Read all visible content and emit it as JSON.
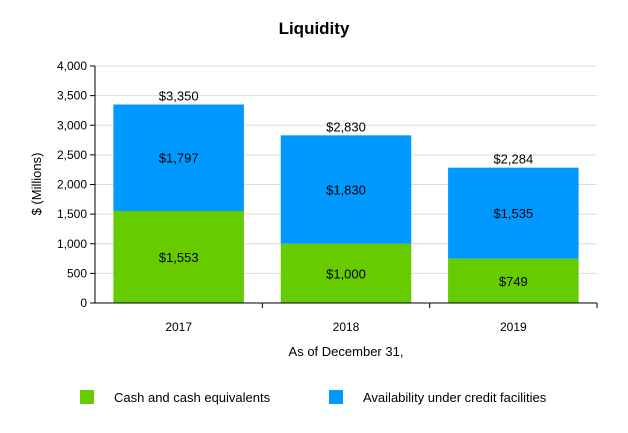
{
  "chart_data": {
    "type": "bar",
    "stacked": true,
    "title": "Liquidity",
    "xlabel": "As of December 31,",
    "ylabel": "$ (Millions)",
    "ylim": [
      0,
      4000
    ],
    "yticks": [
      0,
      500,
      1000,
      1500,
      2000,
      2500,
      3000,
      3500,
      4000
    ],
    "ytick_labels": [
      "0",
      "500",
      "1,000",
      "1,500",
      "2,000",
      "2,500",
      "3,000",
      "3,500",
      "4,000"
    ],
    "grid": true,
    "categories": [
      "2017",
      "2018",
      "2019"
    ],
    "series": [
      {
        "name": "Cash and cash equivalents",
        "color": "#66cc00",
        "values": [
          1553,
          1000,
          749
        ],
        "labels": [
          "$1,553",
          "$1,000",
          "$749"
        ]
      },
      {
        "name": "Availability under credit facilities",
        "color": "#0099ff",
        "values": [
          1797,
          1830,
          1535
        ],
        "labels": [
          "$1,797",
          "$1,830",
          "$1,535"
        ]
      }
    ],
    "totals": [
      3350,
      2830,
      2284
    ],
    "total_labels": [
      "$3,350",
      "$2,830",
      "$2,284"
    ],
    "legend_position": "bottom"
  }
}
